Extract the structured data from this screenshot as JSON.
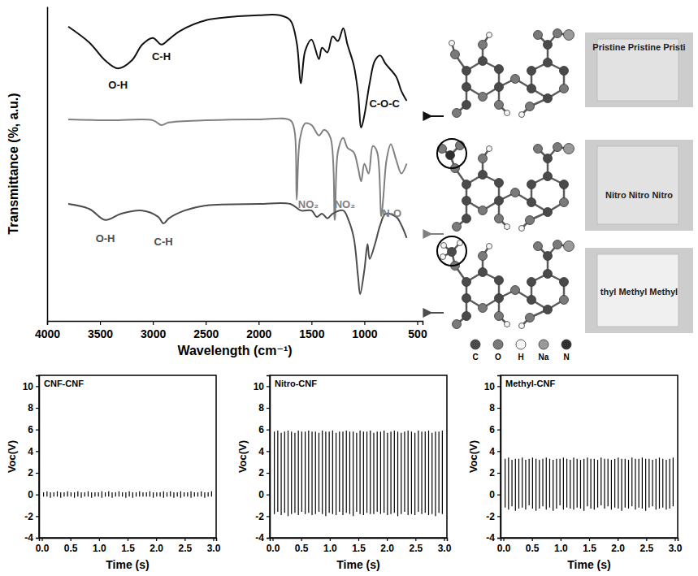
{
  "chart_data": [
    {
      "type": "line",
      "x_label": "Wavelength (cm⁻¹)",
      "y_label": "Transmittance (%, a.u.)",
      "xlim": [
        4000,
        450
      ],
      "xticks": [
        4000,
        3500,
        3000,
        2500,
        2000,
        1500,
        1000,
        500
      ],
      "ylim": [
        0,
        100
      ],
      "tick_labels": "x",
      "series": [
        {
          "color": "#111111",
          "x": [
            3800,
            3600,
            3450,
            3330,
            3200,
            3100,
            3000,
            2920,
            2850,
            2750,
            2500,
            2000,
            1800,
            1700,
            1640,
            1600,
            1560,
            1500,
            1430,
            1400,
            1350,
            1300,
            1250,
            1200,
            1160,
            1100,
            1060,
            1030,
            1000,
            950,
            900,
            850,
            800,
            700,
            650,
            600
          ],
          "values": [
            93.6,
            88.5,
            82.8,
            80.3,
            82.8,
            87.9,
            90.0,
            87.9,
            89.5,
            92.1,
            95.6,
            97.2,
            97.2,
            95.6,
            88.5,
            75.6,
            85.9,
            89.5,
            83.3,
            86.9,
            85.4,
            90.5,
            89.0,
            93.1,
            87.9,
            81.3,
            72.6,
            61.5,
            65.4,
            75.6,
            82.8,
            84.4,
            81.8,
            77.7,
            73.1,
            70.0
          ]
        },
        {
          "color": "#808080",
          "x": [
            3800,
            3400,
            3000,
            2920,
            2850,
            2500,
            2000,
            1700,
            1660,
            1640,
            1610,
            1560,
            1500,
            1430,
            1380,
            1320,
            1280,
            1250,
            1200,
            1160,
            1100,
            1060,
            1030,
            1000,
            960,
            920,
            880,
            840,
            820,
            790,
            750,
            700,
            650,
            600
          ],
          "values": [
            64.1,
            63.8,
            63.8,
            62.3,
            63.1,
            63.8,
            64.1,
            63.8,
            60.3,
            38.5,
            57.7,
            62.8,
            62.3,
            59.0,
            60.8,
            58.2,
            32.1,
            53.8,
            58.2,
            55.1,
            53.6,
            48.7,
            44.4,
            50.0,
            46.9,
            55.6,
            53.8,
            33.3,
            39.7,
            51.3,
            56.2,
            51.3,
            46.9,
            50.0
          ]
        },
        {
          "color": "#4d4d4d",
          "x": [
            3800,
            3600,
            3450,
            3300,
            3100,
            2950,
            2900,
            2850,
            2700,
            2500,
            2000,
            1700,
            1600,
            1500,
            1450,
            1400,
            1350,
            1300,
            1200,
            1150,
            1100,
            1060,
            1040,
            1000,
            970,
            950,
            900,
            850,
            800,
            700,
            650,
            600
          ],
          "values": [
            37.2,
            35.6,
            32.1,
            34.1,
            35.1,
            33.1,
            31.0,
            32.6,
            35.1,
            36.7,
            37.2,
            37.2,
            35.1,
            35.1,
            33.1,
            34.1,
            32.6,
            34.1,
            35.1,
            32.1,
            26.4,
            14.1,
            8.5,
            16.2,
            24.4,
            19.7,
            24.4,
            30.5,
            34.1,
            33.1,
            30.5,
            26.4
          ]
        }
      ],
      "annotations": [
        {
          "text": "O-H",
          "x": 3330,
          "y": 74,
          "color": "#111111"
        },
        {
          "text": "C-H",
          "x": 2920,
          "y": 83,
          "color": "#111111"
        },
        {
          "text": "C-O-C",
          "x": 810,
          "y": 68,
          "color": "#111111"
        },
        {
          "text": "NO₂",
          "x": 1530,
          "y": 36,
          "color": "#808080"
        },
        {
          "text": "NO₂",
          "x": 1185,
          "y": 36,
          "color": "#808080"
        },
        {
          "text": "N-O",
          "x": 740,
          "y": 33,
          "color": "#808080"
        },
        {
          "text": "O-H",
          "x": 3450,
          "y": 25,
          "color": "#4d4d4d"
        },
        {
          "text": "C-H",
          "x": 2900,
          "y": 24,
          "color": "#4d4d4d"
        }
      ]
    },
    {
      "type": "spike",
      "title": "CNF-CNF",
      "x_label": "Time (s)",
      "y_label": "Voc(V)",
      "xlim": [
        -0.05,
        3.05
      ],
      "xticks": [
        {
          "value": 0,
          "label": "0.0"
        },
        0.5,
        {
          "value": 1,
          "label": "1.0"
        },
        1.5,
        {
          "value": 2,
          "label": "2.0"
        },
        2.5,
        {
          "value": 3,
          "label": "3.0"
        }
      ],
      "ylim": [
        -4,
        11
      ],
      "yticks": [
        -4,
        -2,
        0,
        2,
        4,
        6,
        8,
        10
      ],
      "color": "#000000",
      "x": [
        0.03,
        0.09,
        0.15,
        0.21,
        0.27,
        0.33,
        0.39,
        0.45,
        0.51,
        0.57,
        0.63,
        0.69,
        0.75,
        0.81,
        0.87,
        0.93,
        0.99,
        1.05,
        1.11,
        1.17,
        1.23,
        1.29,
        1.35,
        1.41,
        1.47,
        1.53,
        1.59,
        1.65,
        1.71,
        1.77,
        1.83,
        1.89,
        1.95,
        2.01,
        2.07,
        2.13,
        2.19,
        2.25,
        2.31,
        2.37,
        2.43,
        2.49,
        2.55,
        2.61,
        2.67,
        2.73,
        2.79,
        2.85,
        2.91,
        2.97
      ],
      "values": [
        0.2,
        0.3,
        0.2,
        0.2,
        0.3,
        0.2,
        0.2,
        0.3,
        0.2,
        0.2,
        0.3,
        0.2,
        0.2,
        0.3,
        0.2,
        0.2,
        0.2,
        0.3,
        0.2,
        0.3,
        0.2,
        0.2,
        0.3,
        0.2,
        0.2,
        0.3,
        0.2,
        0.2,
        0.3,
        0.2,
        0.2,
        0.3,
        0.2,
        0.2,
        0.2,
        0.3,
        0.2,
        0.3,
        0.2,
        0.2,
        0.3,
        0.2,
        0.2,
        0.3,
        0.2,
        0.2,
        0.3,
        0.2,
        0.2,
        0.3
      ],
      "min_values": [
        -0.2,
        -0.2,
        -0.3,
        -0.2,
        -0.2,
        -0.3,
        -0.2,
        -0.2,
        -0.2,
        -0.3,
        -0.2,
        -0.3,
        -0.2,
        -0.2,
        -0.3,
        -0.2,
        -0.2,
        -0.3,
        -0.2,
        -0.2,
        -0.3,
        -0.2,
        -0.2,
        -0.2,
        -0.3,
        -0.2,
        -0.3,
        -0.2,
        -0.2,
        -0.2,
        -0.2,
        -0.2,
        -0.3,
        -0.2,
        -0.2,
        -0.3,
        -0.2,
        -0.2,
        -0.3,
        -0.2,
        -0.3,
        -0.2,
        -0.2,
        -0.3,
        -0.2,
        -0.2,
        -0.2,
        -0.3,
        -0.2,
        -0.2
      ]
    },
    {
      "type": "spike",
      "title": "Nitro-CNF",
      "x_label": "Time (s)",
      "y_label": "Voc(V)",
      "xlim": [
        -0.05,
        3.05
      ],
      "xticks": [
        {
          "value": 0,
          "label": "0.0"
        },
        0.5,
        {
          "value": 1,
          "label": "1.0"
        },
        1.5,
        {
          "value": 2,
          "label": "2.0"
        },
        2.5,
        {
          "value": 3,
          "label": "3.0"
        }
      ],
      "ylim": [
        -4,
        11
      ],
      "yticks": [
        -4,
        -2,
        0,
        2,
        4,
        6,
        8,
        10
      ],
      "color": "#000000",
      "x": [
        0.03,
        0.09,
        0.15,
        0.21,
        0.27,
        0.33,
        0.39,
        0.45,
        0.51,
        0.57,
        0.63,
        0.69,
        0.75,
        0.81,
        0.87,
        0.93,
        0.99,
        1.05,
        1.11,
        1.17,
        1.23,
        1.29,
        1.35,
        1.41,
        1.47,
        1.53,
        1.59,
        1.65,
        1.71,
        1.77,
        1.83,
        1.89,
        1.95,
        2.01,
        2.07,
        2.13,
        2.19,
        2.25,
        2.31,
        2.37,
        2.43,
        2.49,
        2.55,
        2.61,
        2.67,
        2.73,
        2.79,
        2.85,
        2.91,
        2.97
      ],
      "values": [
        5.8,
        5.9,
        5.7,
        5.8,
        5.9,
        5.8,
        5.7,
        5.9,
        5.8,
        5.8,
        5.9,
        5.8,
        5.8,
        5.7,
        5.9,
        5.8,
        5.8,
        5.9,
        5.7,
        5.8,
        5.8,
        5.9,
        5.8,
        5.8,
        5.7,
        5.9,
        5.8,
        5.8,
        5.9,
        5.7,
        5.8,
        5.8,
        5.9,
        5.7,
        5.8,
        5.9,
        5.8,
        5.7,
        5.8,
        5.9,
        5.8,
        5.7,
        5.9,
        5.8,
        5.8,
        5.9,
        5.7,
        5.8,
        5.8,
        5.9
      ],
      "min_values": [
        -1.8,
        -1.6,
        -1.9,
        -1.7,
        -2.0,
        -1.8,
        -1.7,
        -1.9,
        -1.6,
        -1.8,
        -1.7,
        -1.9,
        -1.8,
        -1.6,
        -1.8,
        -2.0,
        -1.7,
        -1.8,
        -1.9,
        -1.6,
        -1.9,
        -1.7,
        -1.8,
        -2.0,
        -1.6,
        -1.8,
        -1.9,
        -1.7,
        -1.8,
        -1.8,
        -1.6,
        -1.8,
        -1.7,
        -1.9,
        -1.8,
        -1.7,
        -2.0,
        -1.8,
        -1.6,
        -1.9,
        -1.8,
        -1.9,
        -1.6,
        -1.8,
        -1.7,
        -1.9,
        -1.8,
        -2.0,
        -1.7,
        -1.8
      ]
    },
    {
      "type": "spike",
      "title": "Methyl-CNF",
      "x_label": "Time (s)",
      "y_label": "Voc(V)",
      "xlim": [
        -0.05,
        3.05
      ],
      "xticks": [
        {
          "value": 0,
          "label": "0.0"
        },
        0.5,
        {
          "value": 1,
          "label": "1.0"
        },
        1.5,
        {
          "value": 2,
          "label": "2.0"
        },
        2.5,
        {
          "value": 3,
          "label": "3.0"
        }
      ],
      "ylim": [
        -4,
        11
      ],
      "yticks": [
        -4,
        -2,
        0,
        2,
        4,
        6,
        8,
        10
      ],
      "color": "#000000",
      "x": [
        0.03,
        0.09,
        0.15,
        0.21,
        0.27,
        0.33,
        0.39,
        0.45,
        0.51,
        0.57,
        0.63,
        0.69,
        0.75,
        0.81,
        0.87,
        0.93,
        0.99,
        1.05,
        1.11,
        1.17,
        1.23,
        1.29,
        1.35,
        1.41,
        1.47,
        1.53,
        1.59,
        1.65,
        1.71,
        1.77,
        1.83,
        1.89,
        1.95,
        2.01,
        2.07,
        2.13,
        2.19,
        2.25,
        2.31,
        2.37,
        2.43,
        2.49,
        2.55,
        2.61,
        2.67,
        2.73,
        2.79,
        2.85,
        2.91,
        2.97
      ],
      "values": [
        3.3,
        3.4,
        3.2,
        3.3,
        3.3,
        3.4,
        3.2,
        3.3,
        3.4,
        3.3,
        3.2,
        3.3,
        3.4,
        3.3,
        3.2,
        3.3,
        3.3,
        3.4,
        3.3,
        3.2,
        3.4,
        3.3,
        3.2,
        3.3,
        3.4,
        3.3,
        3.3,
        3.2,
        3.4,
        3.3,
        3.3,
        3.2,
        3.3,
        3.4,
        3.3,
        3.3,
        3.2,
        3.4,
        3.3,
        3.3,
        3.4,
        3.3,
        3.3,
        3.2,
        3.3,
        3.4,
        3.3,
        3.2,
        3.3,
        3.4
      ],
      "min_values": [
        -1.2,
        -1.4,
        -1.1,
        -1.5,
        -1.3,
        -1.2,
        -1.4,
        -1.0,
        -1.3,
        -1.5,
        -1.3,
        -1.1,
        -1.4,
        -1.2,
        -1.5,
        -1.3,
        -1.0,
        -1.4,
        -1.2,
        -1.3,
        -1.4,
        -1.2,
        -1.3,
        -1.5,
        -1.1,
        -1.3,
        -1.4,
        -1.2,
        -1.0,
        -1.3,
        -1.1,
        -1.4,
        -1.2,
        -1.3,
        -1.5,
        -1.2,
        -1.3,
        -1.1,
        -1.4,
        -1.2,
        -1.3,
        -1.5,
        -1.2,
        -1.1,
        -1.4,
        -1.3,
        -1.2,
        -1.4,
        -1.3,
        -1.1
      ]
    }
  ],
  "illustrations": {
    "element_legend": [
      "C",
      "O",
      "H",
      "Na",
      "N"
    ],
    "film_labels": [
      "Pristine Pristine Pristi",
      "Nitro Nitro Nitro",
      "thyl Methyl Methyl"
    ]
  }
}
